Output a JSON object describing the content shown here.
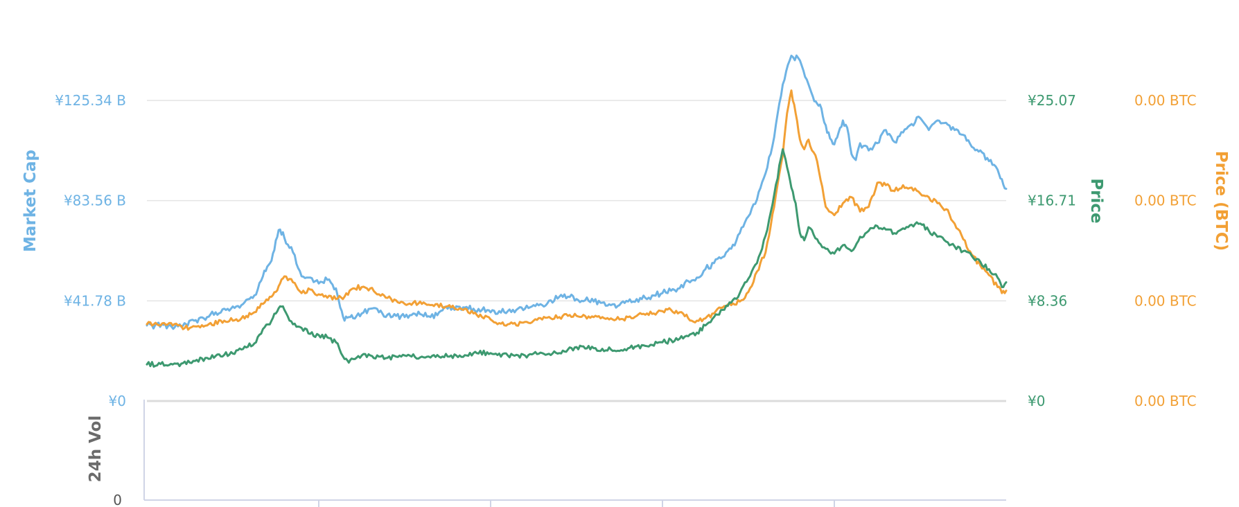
{
  "chart_data": {
    "type": "line",
    "x_range": [
      0,
      100
    ],
    "axes": {
      "market_cap": {
        "title": "Market Cap",
        "range": [
          0,
          125.34
        ],
        "ticks": [
          "¥125.34 B",
          "¥83.56 B",
          "¥41.78 B",
          "¥0"
        ],
        "color": "#6eb3e4"
      },
      "price": {
        "title": "Price",
        "range": [
          0,
          25.07
        ],
        "ticks": [
          "¥25.07",
          "¥16.71",
          "¥8.36",
          "¥0"
        ],
        "color": "#3d9970"
      },
      "price_btc": {
        "title": "Price (BTC)",
        "ticks": [
          "0.00 BTC",
          "0.00 BTC",
          "0.00 BTC",
          "0.00 BTC"
        ],
        "color": "#f2a035"
      },
      "volume": {
        "title": "24h Vol",
        "ticks": [
          "0"
        ],
        "color": "#6b6b6b"
      }
    },
    "grid": true,
    "series": [
      {
        "key": "market_cap",
        "axis": "market_cap",
        "color": "#6eb3e4",
        "x": [
          0,
          2.5,
          4,
          5.5,
          7,
          9,
          11,
          12.5,
          13.5,
          14,
          14.5,
          15,
          15.5,
          16,
          17,
          18,
          19,
          20,
          21,
          22,
          22.5,
          23,
          23.5,
          24,
          25,
          26,
          27,
          28,
          29,
          30,
          31,
          32,
          33,
          34,
          35,
          36,
          37,
          38,
          39,
          40,
          41,
          42,
          43,
          44,
          45,
          46,
          47,
          48,
          49,
          50,
          51,
          52,
          53,
          54,
          55,
          56,
          57,
          58,
          59,
          60,
          61,
          62,
          63,
          64,
          65,
          66,
          67,
          68,
          69,
          70,
          71,
          72,
          73,
          74,
          75,
          76,
          77,
          77.5,
          78,
          78.5,
          79,
          79.5,
          80,
          80.5,
          81,
          81.5,
          82,
          82.5,
          83,
          84,
          85,
          86,
          87,
          88,
          89,
          90,
          91,
          92,
          93,
          94,
          95,
          96,
          97,
          98,
          99,
          99.5,
          100
        ],
        "values": [
          31.5,
          31.5,
          31.0,
          33.5,
          35.0,
          38.5,
          40.0,
          44.0,
          52.0,
          56.0,
          58.5,
          67.0,
          71.5,
          68.0,
          62.0,
          52.0,
          51.5,
          49.0,
          50.5,
          47.0,
          39.0,
          33.5,
          35.0,
          34.5,
          36.5,
          38.5,
          37.0,
          36.0,
          35.5,
          35.0,
          36.5,
          36.0,
          35.0,
          37.0,
          38.5,
          39.5,
          39.0,
          38.5,
          38.0,
          37.0,
          37.5,
          37.5,
          38.0,
          38.5,
          40.0,
          40.0,
          42.0,
          43.5,
          43.5,
          42.5,
          42.0,
          41.5,
          41.0,
          40.0,
          40.0,
          41.5,
          42.5,
          43.0,
          44.0,
          45.0,
          46.0,
          47.0,
          50.0,
          51.5,
          55.0,
          57.5,
          60.0,
          63.5,
          70.0,
          77.0,
          84.0,
          95.0,
          110.0,
          132.0,
          144.0,
          142.0,
          132.0,
          127.0,
          124.0,
          122.0,
          115.0,
          109.5,
          107.0,
          112.0,
          117.0,
          114.0,
          103.0,
          100.5,
          107.5,
          104.5,
          107.5,
          113.0,
          108.0,
          112.0,
          115.5,
          118.0,
          113.0,
          117.0,
          116.0,
          113.0,
          111.0,
          106.0,
          104.5,
          100.0,
          96.5,
          92.5,
          88.5
        ]
      },
      {
        "key": "price_btc",
        "axis": "price_btc",
        "color": "#f2a035",
        "x": [
          0,
          3,
          5,
          7,
          9,
          11,
          12.5,
          13.5,
          14.5,
          15,
          15.5,
          16,
          17,
          18,
          19,
          20,
          22,
          23,
          24,
          25,
          26,
          27,
          28,
          29,
          30,
          31,
          32,
          33,
          35,
          37,
          38,
          39,
          40,
          41,
          42,
          43,
          44,
          45,
          46,
          47,
          48,
          49,
          50,
          51,
          52,
          53,
          54,
          55,
          56,
          57,
          58,
          59,
          60,
          61,
          62,
          63,
          64,
          65,
          66,
          67,
          68,
          69,
          70,
          71,
          72,
          73,
          74,
          74.5,
          75,
          75.5,
          76,
          76.5,
          77,
          78,
          79,
          80,
          81,
          82,
          83,
          84,
          85,
          86,
          87,
          88,
          89,
          90,
          91,
          92,
          93,
          94,
          95,
          96,
          97,
          98,
          99,
          99.5,
          100
        ],
        "values": [
          6.4,
          6.3,
          6.1,
          6.3,
          6.7,
          6.9,
          7.4,
          8.1,
          8.7,
          9.1,
          9.8,
          10.4,
          9.9,
          9.0,
          9.3,
          8.9,
          8.5,
          8.7,
          9.4,
          9.5,
          9.4,
          8.9,
          8.6,
          8.4,
          8.1,
          8.2,
          8.1,
          8.0,
          7.9,
          7.7,
          7.3,
          7.0,
          6.8,
          6.5,
          6.4,
          6.3,
          6.6,
          6.7,
          6.8,
          6.9,
          7.0,
          7.1,
          7.1,
          7.1,
          7.0,
          7.0,
          6.9,
          6.8,
          7.0,
          7.1,
          7.2,
          7.3,
          7.5,
          7.6,
          7.4,
          6.9,
          6.7,
          6.9,
          7.3,
          7.8,
          8.0,
          8.3,
          9.1,
          10.8,
          12.4,
          16.2,
          20.5,
          24.0,
          25.9,
          24.0,
          21.8,
          21.0,
          21.8,
          20.0,
          16.2,
          15.5,
          16.5,
          17.0,
          15.8,
          16.2,
          18.2,
          18.0,
          17.5,
          18.0,
          17.8,
          17.3,
          17.0,
          16.5,
          16.0,
          14.8,
          13.5,
          12.2,
          11.3,
          10.5,
          9.5,
          9.0,
          9.2
        ]
      },
      {
        "key": "price",
        "axis": "price",
        "color": "#3d9970",
        "x": [
          0,
          3,
          5,
          7,
          9,
          11,
          12.5,
          13.5,
          14.5,
          15,
          15.5,
          16,
          17,
          18,
          19,
          20,
          21,
          22,
          23,
          23.5,
          24,
          25,
          26,
          27,
          28,
          29,
          30,
          32,
          34,
          36,
          38,
          40,
          42,
          44,
          46,
          48,
          50,
          52,
          54,
          56,
          58,
          60,
          62,
          64,
          65,
          66,
          67,
          68,
          69,
          70,
          71,
          72,
          73,
          74,
          74.5,
          75,
          75.5,
          76,
          76.5,
          77,
          78,
          79,
          80,
          81,
          82,
          83,
          84,
          85,
          86,
          87,
          88,
          89,
          90,
          91,
          92,
          93,
          94,
          95,
          96,
          97,
          98,
          99,
          99.5,
          100
        ],
        "values": [
          3.05,
          3.05,
          3.2,
          3.6,
          3.85,
          4.3,
          4.8,
          6.0,
          6.7,
          7.3,
          7.9,
          7.6,
          6.4,
          6.1,
          5.6,
          5.5,
          5.3,
          4.9,
          3.5,
          3.2,
          3.5,
          3.8,
          3.8,
          3.7,
          3.6,
          3.7,
          3.8,
          3.7,
          3.7,
          3.8,
          4.0,
          4.0,
          3.8,
          3.8,
          4.0,
          4.0,
          4.5,
          4.4,
          4.3,
          4.4,
          4.6,
          4.9,
          5.2,
          5.7,
          6.3,
          7.0,
          7.6,
          8.2,
          9.0,
          10.2,
          11.5,
          13.8,
          17.2,
          21.0,
          19.5,
          17.8,
          16.5,
          14.0,
          13.4,
          14.5,
          13.5,
          12.7,
          12.3,
          13.0,
          12.5,
          13.7,
          14.2,
          14.6,
          14.3,
          14.0,
          14.4,
          14.7,
          14.8,
          14.2,
          13.7,
          13.3,
          12.9,
          12.5,
          12.1,
          11.6,
          11.0,
          10.3,
          9.5,
          9.9
        ]
      }
    ],
    "volume": {
      "values": [
        0
      ]
    },
    "x_ticks": {
      "positions": [
        20,
        40,
        60,
        80
      ],
      "labels": []
    }
  }
}
